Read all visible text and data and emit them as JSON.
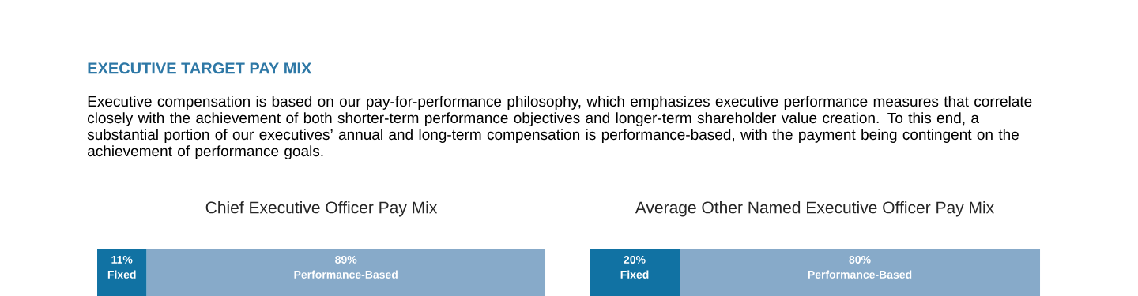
{
  "chart_data": [
    {
      "type": "other",
      "title": "EXECUTIVE TARGET PAY MIX",
      "subtitle": "Executive compensation is based on our pay-for-performance philosophy, which emphasizes executive performance measures that correlate closely with the achievement of both shorter-term performance objectives and longer-term shareholder value creation. To this end, a substantial portion of our executives’ annual and long-term compensation is performance-based, with the payment being contingent on the achievement of performance goals."
    },
    {
      "type": "bar",
      "orientation": "horizontal",
      "stacked": true,
      "title": "Chief Executive Officer Pay Mix",
      "categories": [
        null
      ],
      "xlim": [
        0,
        100
      ],
      "tick_labels": false,
      "series": [
        {
          "name": "Fixed",
          "color": "#1172a3",
          "values": [
            11
          ],
          "value_labels": [
            "11%"
          ]
        },
        {
          "name": "Performance-Based",
          "color": "#87aac9",
          "values": [
            89
          ],
          "value_labels": [
            "89%"
          ]
        }
      ]
    },
    {
      "type": "bar",
      "orientation": "horizontal",
      "stacked": true,
      "title": "Average Other Named Executive Officer Pay Mix",
      "categories": [
        null
      ],
      "xlim": [
        0,
        100
      ],
      "tick_labels": false,
      "series": [
        {
          "name": "Fixed",
          "color": "#1172a3",
          "values": [
            20
          ],
          "value_labels": [
            "20%"
          ]
        },
        {
          "name": "Performance-Based",
          "color": "#87aac9",
          "values": [
            80
          ],
          "value_labels": [
            "80%"
          ]
        }
      ]
    }
  ]
}
